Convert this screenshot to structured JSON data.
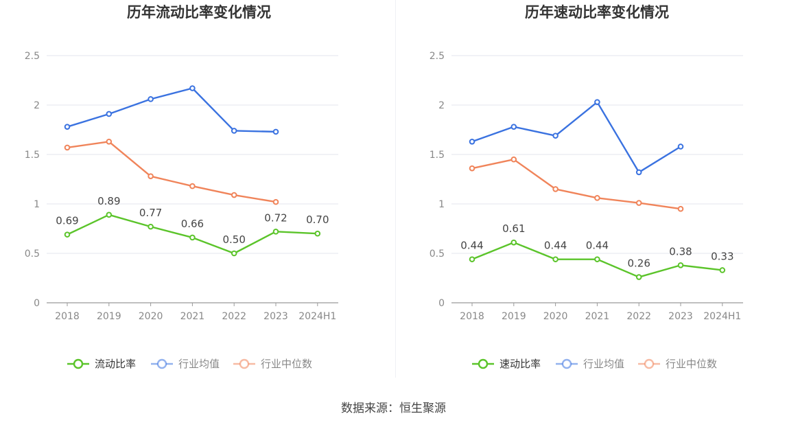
{
  "chart_data": [
    {
      "type": "line",
      "title": "历年流动比率变化情况",
      "categories": [
        "2018",
        "2019",
        "2020",
        "2021",
        "2022",
        "2023",
        "2024H1"
      ],
      "ylim": [
        0,
        2.5
      ],
      "yticks": [
        "0",
        "0.5",
        "1",
        "1.5",
        "2",
        "2.5"
      ],
      "grid": true,
      "legend_position": "bottom",
      "series": [
        {
          "name": "流动比率",
          "color": "#5bc42a",
          "values": [
            0.69,
            0.89,
            0.77,
            0.66,
            0.5,
            0.72,
            0.7
          ],
          "labels": [
            "0.69",
            "0.89",
            "0.77",
            "0.66",
            "0.50",
            "0.72",
            "0.70"
          ],
          "show_labels": true
        },
        {
          "name": "行业均值",
          "color": "#3a72e0",
          "values": [
            1.78,
            1.91,
            2.06,
            2.17,
            1.74,
            1.73,
            null
          ],
          "show_labels": false
        },
        {
          "name": "行业中位数",
          "color": "#f0845a",
          "values": [
            1.57,
            1.63,
            1.28,
            1.18,
            1.09,
            1.02,
            null
          ],
          "show_labels": false
        }
      ]
    },
    {
      "type": "line",
      "title": "历年速动比率变化情况",
      "categories": [
        "2018",
        "2019",
        "2020",
        "2021",
        "2022",
        "2023",
        "2024H1"
      ],
      "ylim": [
        0,
        2.5
      ],
      "yticks": [
        "0",
        "0.5",
        "1",
        "1.5",
        "2",
        "2.5"
      ],
      "grid": true,
      "legend_position": "bottom",
      "series": [
        {
          "name": "速动比率",
          "color": "#5bc42a",
          "values": [
            0.44,
            0.61,
            0.44,
            0.44,
            0.26,
            0.38,
            0.33
          ],
          "labels": [
            "0.44",
            "0.61",
            "0.44",
            "0.44",
            "0.26",
            "0.38",
            "0.33"
          ],
          "show_labels": true
        },
        {
          "name": "行业均值",
          "color": "#3a72e0",
          "values": [
            1.63,
            1.78,
            1.69,
            2.03,
            1.32,
            1.58,
            null
          ],
          "show_labels": false
        },
        {
          "name": "行业中位数",
          "color": "#f0845a",
          "values": [
            1.36,
            1.45,
            1.15,
            1.06,
            1.01,
            0.95,
            null
          ],
          "show_labels": false
        }
      ]
    }
  ],
  "source_text": "数据来源：恒生聚源"
}
